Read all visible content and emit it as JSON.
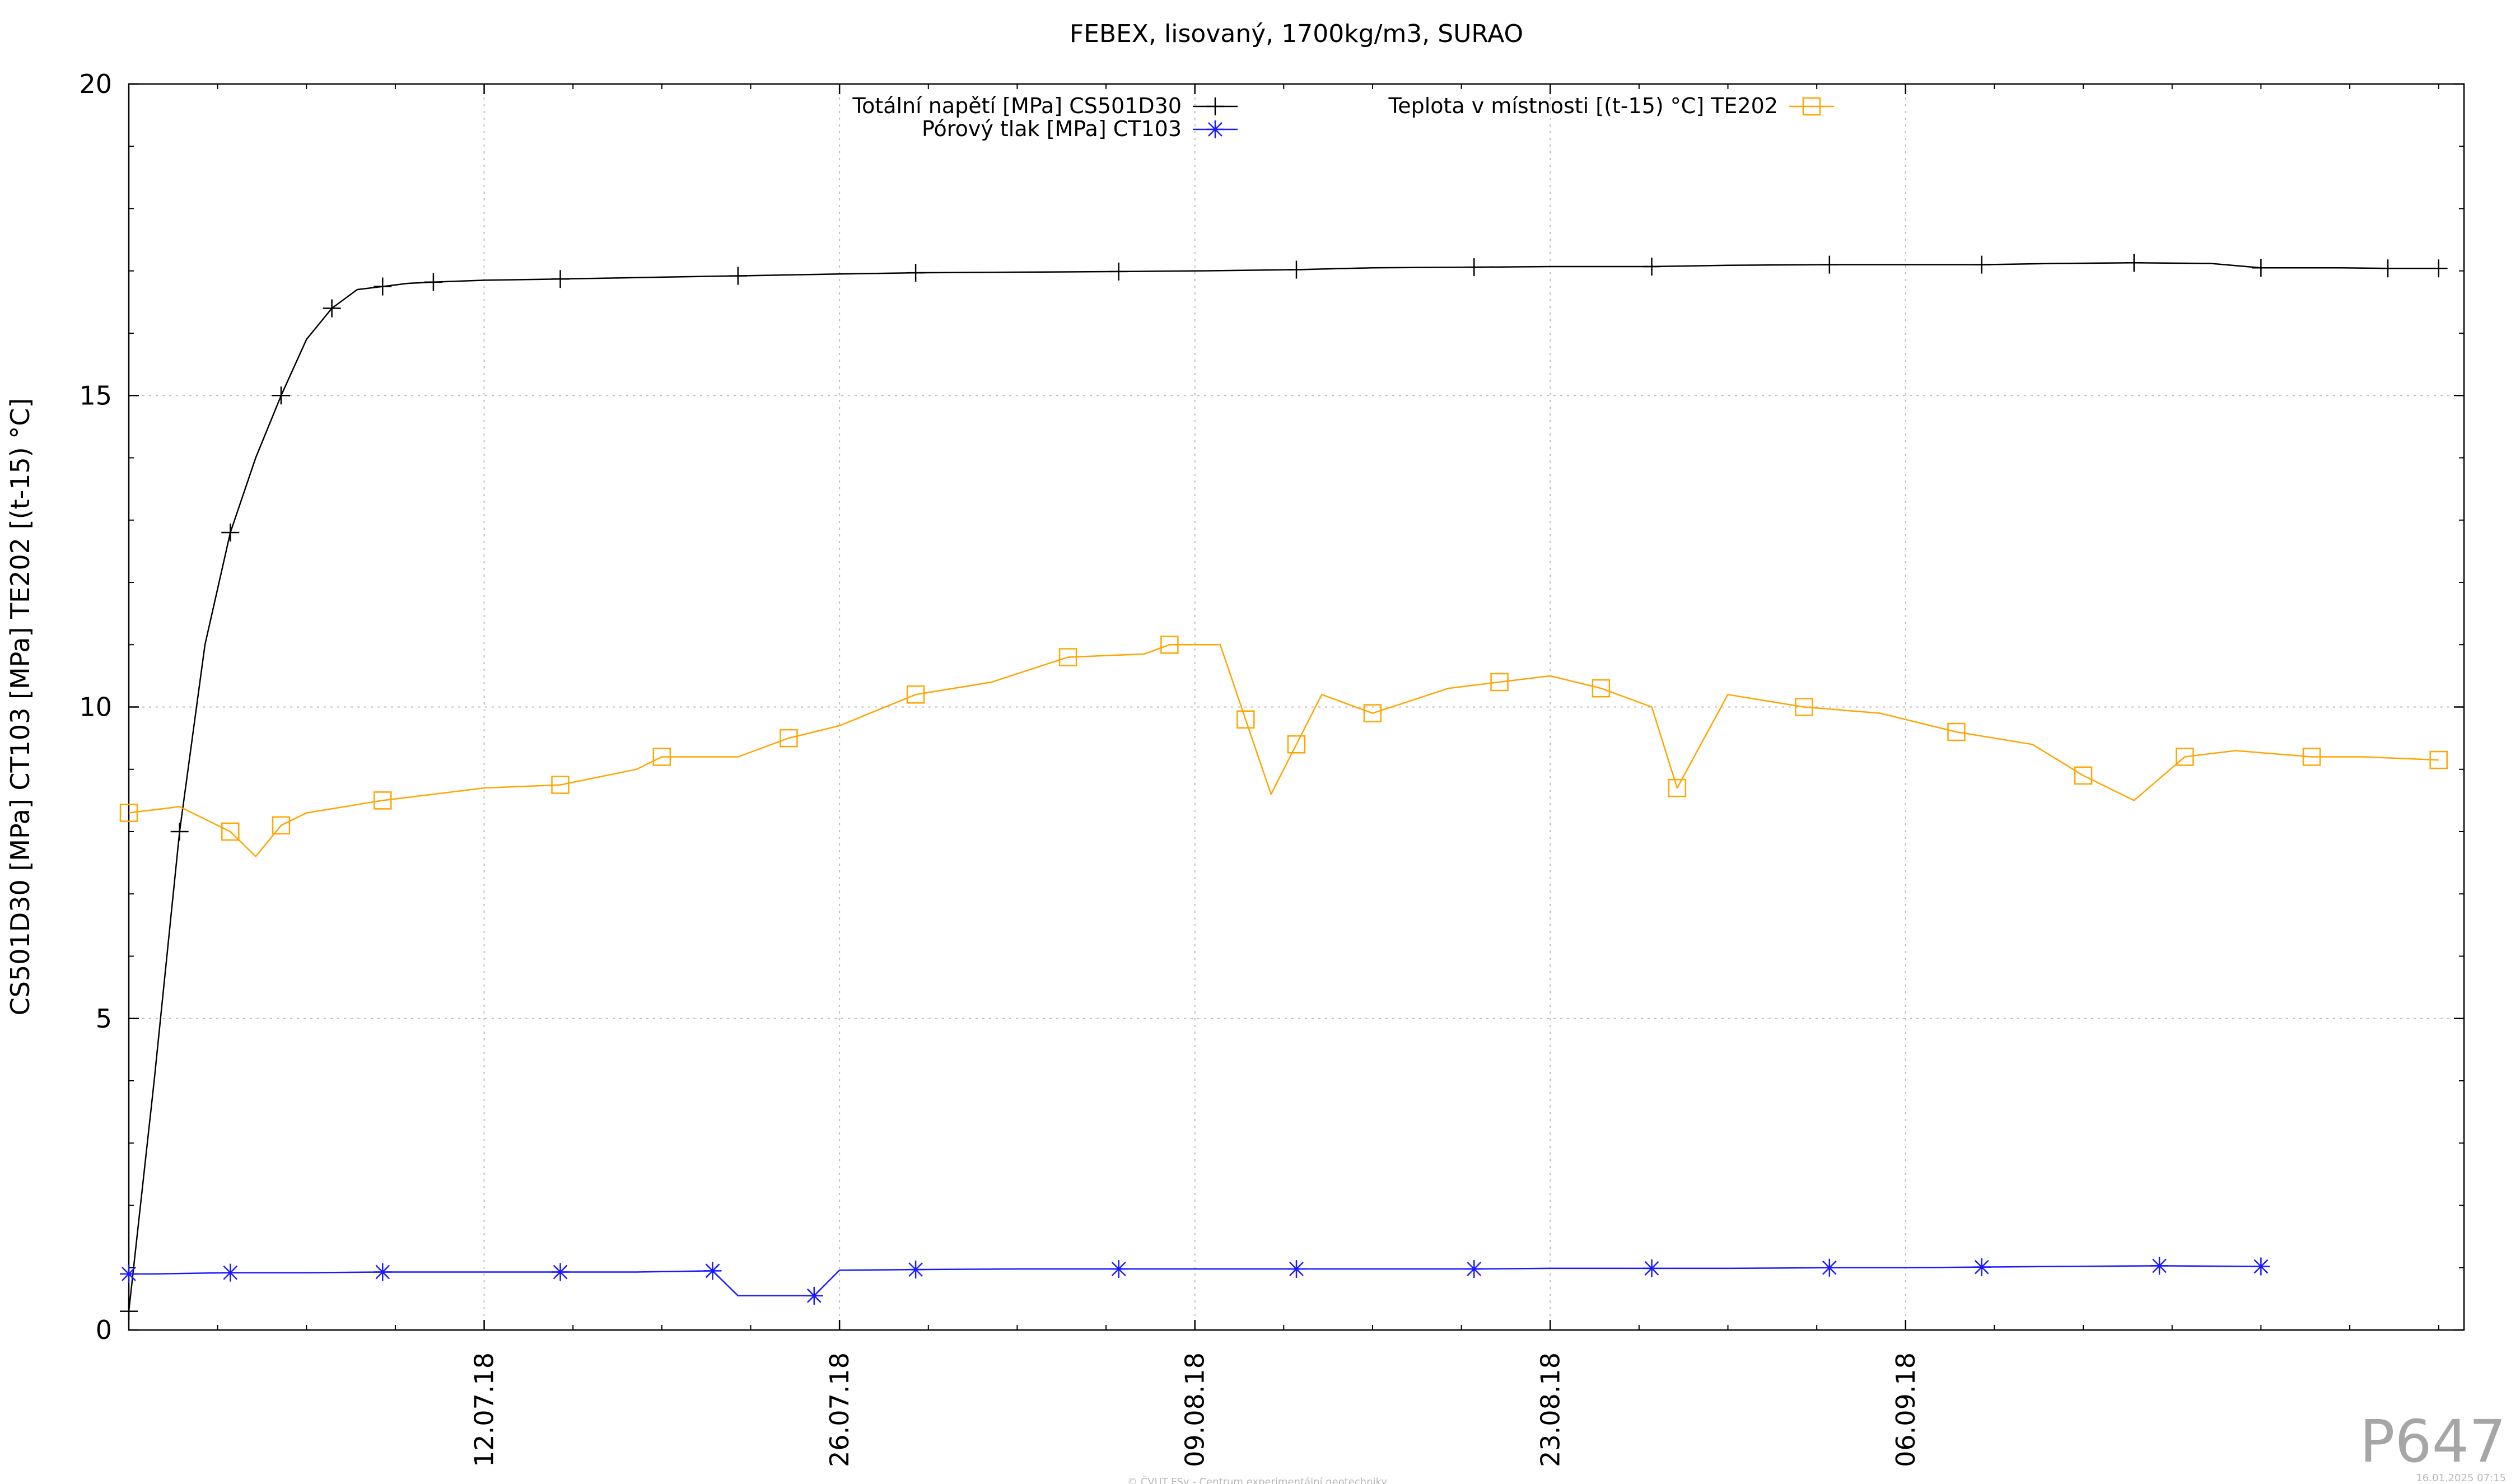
{
  "chart_data": {
    "type": "line",
    "title": "FEBEX, lisovaný, 1700kg/m3, SURAO",
    "ylabel": "CS501D30 [MPa] CT103 [MPa] TE202 [(t-15) °C]",
    "xlabel": "",
    "ylim": [
      0,
      20
    ],
    "xlim": [
      "2018-06-28",
      "2018-09-28"
    ],
    "yticks": [
      0,
      5,
      10,
      15,
      20
    ],
    "ytick_labels": [
      "0",
      "5",
      "10",
      "15",
      "20"
    ],
    "xticks": [
      "2018-07-12",
      "2018-07-26",
      "2018-08-09",
      "2018-08-23",
      "2018-09-06"
    ],
    "xtick_labels": [
      "12.07.18",
      "26.07.18",
      "09.08.18",
      "23.08.18",
      "06.09.18"
    ],
    "grid": true,
    "legend_position": "top",
    "series": [
      {
        "name": "Totální napětí [MPa] CS501D30",
        "color": "#000000",
        "marker": "plus",
        "x": [
          "2018-06-28",
          "2018-06-29",
          "2018-06-30",
          "2018-07-01",
          "2018-07-02",
          "2018-07-03",
          "2018-07-04",
          "2018-07-05",
          "2018-07-06",
          "2018-07-07",
          "2018-07-08",
          "2018-07-09",
          "2018-07-10",
          "2018-07-12",
          "2018-07-15",
          "2018-07-19",
          "2018-07-22",
          "2018-07-26",
          "2018-07-29",
          "2018-08-02",
          "2018-08-06",
          "2018-08-09",
          "2018-08-13",
          "2018-08-16",
          "2018-08-20",
          "2018-08-23",
          "2018-08-27",
          "2018-08-30",
          "2018-09-03",
          "2018-09-06",
          "2018-09-09",
          "2018-09-12",
          "2018-09-15",
          "2018-09-18",
          "2018-09-20",
          "2018-09-23",
          "2018-09-25",
          "2018-09-27"
        ],
        "y": [
          0.3,
          4.0,
          8.0,
          11.0,
          12.8,
          14.0,
          15.0,
          15.9,
          16.4,
          16.7,
          16.75,
          16.8,
          16.82,
          16.85,
          16.87,
          16.9,
          16.92,
          16.95,
          16.97,
          16.98,
          16.99,
          17.0,
          17.02,
          17.05,
          17.06,
          17.07,
          17.07,
          17.09,
          17.1,
          17.1,
          17.1,
          17.12,
          17.13,
          17.12,
          17.05,
          17.05,
          17.04,
          17.04
        ]
      },
      {
        "name": "Pórový tlak [MPa] CT103",
        "color": "#1a1aff",
        "marker": "star",
        "x": [
          "2018-06-28",
          "2018-06-29",
          "2018-07-02",
          "2018-07-05",
          "2018-07-08",
          "2018-07-12",
          "2018-07-15",
          "2018-07-18",
          "2018-07-21",
          "2018-07-22",
          "2018-07-25",
          "2018-07-26",
          "2018-07-29",
          "2018-08-02",
          "2018-08-06",
          "2018-08-09",
          "2018-08-13",
          "2018-08-16",
          "2018-08-20",
          "2018-08-23",
          "2018-08-27",
          "2018-08-30",
          "2018-09-03",
          "2018-09-06",
          "2018-09-09",
          "2018-09-12",
          "2018-09-16",
          "2018-09-20"
        ],
        "y": [
          0.9,
          0.9,
          0.92,
          0.92,
          0.93,
          0.93,
          0.93,
          0.93,
          0.95,
          0.55,
          0.55,
          0.96,
          0.97,
          0.98,
          0.98,
          0.98,
          0.98,
          0.98,
          0.98,
          0.99,
          0.99,
          0.99,
          1.0,
          1.0,
          1.01,
          1.02,
          1.03,
          1.02
        ]
      },
      {
        "name": "Teplota v místnosti [(t-15) °C] TE202",
        "color": "#ffa500",
        "marker": "square",
        "x": [
          "2018-06-28",
          "2018-06-30",
          "2018-07-02",
          "2018-07-03",
          "2018-07-04",
          "2018-07-05",
          "2018-07-08",
          "2018-07-12",
          "2018-07-15",
          "2018-07-18",
          "2018-07-19",
          "2018-07-22",
          "2018-07-24",
          "2018-07-26",
          "2018-07-29",
          "2018-08-01",
          "2018-08-04",
          "2018-08-07",
          "2018-08-08",
          "2018-08-10",
          "2018-08-11",
          "2018-08-12",
          "2018-08-13",
          "2018-08-14",
          "2018-08-16",
          "2018-08-19",
          "2018-08-21",
          "2018-08-23",
          "2018-08-25",
          "2018-08-27",
          "2018-08-28",
          "2018-08-30",
          "2018-09-02",
          "2018-09-05",
          "2018-09-08",
          "2018-09-11",
          "2018-09-13",
          "2018-09-15",
          "2018-09-17",
          "2018-09-19",
          "2018-09-22",
          "2018-09-24",
          "2018-09-27"
        ],
        "y": [
          8.3,
          8.4,
          8.0,
          7.6,
          8.1,
          8.3,
          8.5,
          8.7,
          8.75,
          9.0,
          9.2,
          9.2,
          9.5,
          9.7,
          10.2,
          10.4,
          10.8,
          10.85,
          11.0,
          11.0,
          9.8,
          8.6,
          9.4,
          10.2,
          9.9,
          10.3,
          10.4,
          10.5,
          10.3,
          10.0,
          8.7,
          10.2,
          10.0,
          9.9,
          9.6,
          9.4,
          8.9,
          8.5,
          9.2,
          9.3,
          9.2,
          9.2,
          9.15
        ]
      }
    ]
  },
  "plate_label": "P647",
  "footer_left": "© ČVUT FSv - Centrum experimentální geotechniky",
  "footer_right": "16.01.2025 07:15"
}
